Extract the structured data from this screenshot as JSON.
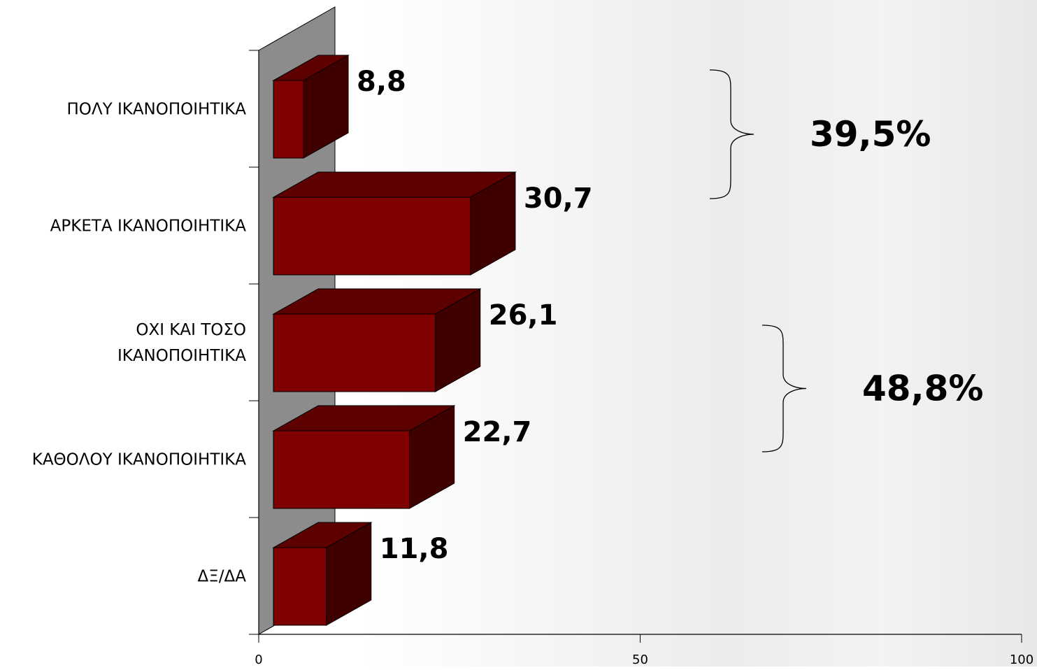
{
  "chart_data": {
    "type": "bar",
    "orientation": "horizontal",
    "style": "3d",
    "categories": [
      [
        "ΠΟΛΥ ΙΚΑΝΟΠΟΙΗΤΙΚΑ"
      ],
      [
        "ΑΡΚΕΤΑ ΙΚΑΝΟΠΟΙΗΤΙΚΑ"
      ],
      [
        "ΟΧΙ ΚΑΙ ΤΟΣΟ",
        "ΙΚΑΝΟΠΟΙΗΤΙΚΑ"
      ],
      [
        "ΚΑΘΟΛΟΥ ΙΚΑΝΟΠΟΙΗΤΙΚΑ"
      ],
      [
        "ΔΞ/ΔΑ"
      ]
    ],
    "values": [
      8.8,
      30.7,
      26.1,
      22.7,
      11.8
    ],
    "value_labels": [
      "8,8",
      "30,7",
      "26,1",
      "22,7",
      "11,8"
    ],
    "xlim": [
      0,
      100
    ],
    "xticks": [
      0,
      50,
      100
    ],
    "xtick_labels": [
      "0",
      "50",
      "100"
    ],
    "grid": false,
    "legend": "none",
    "group_annotations": [
      {
        "label": "39,5%",
        "categories": [
          0,
          1
        ]
      },
      {
        "label": "48,8%",
        "categories": [
          2,
          3
        ]
      }
    ],
    "colors": {
      "bar_front": "#7f0000",
      "bar_top": "#5c0000",
      "bar_side": "#3f0000",
      "wall": "#8c8c8c"
    }
  }
}
